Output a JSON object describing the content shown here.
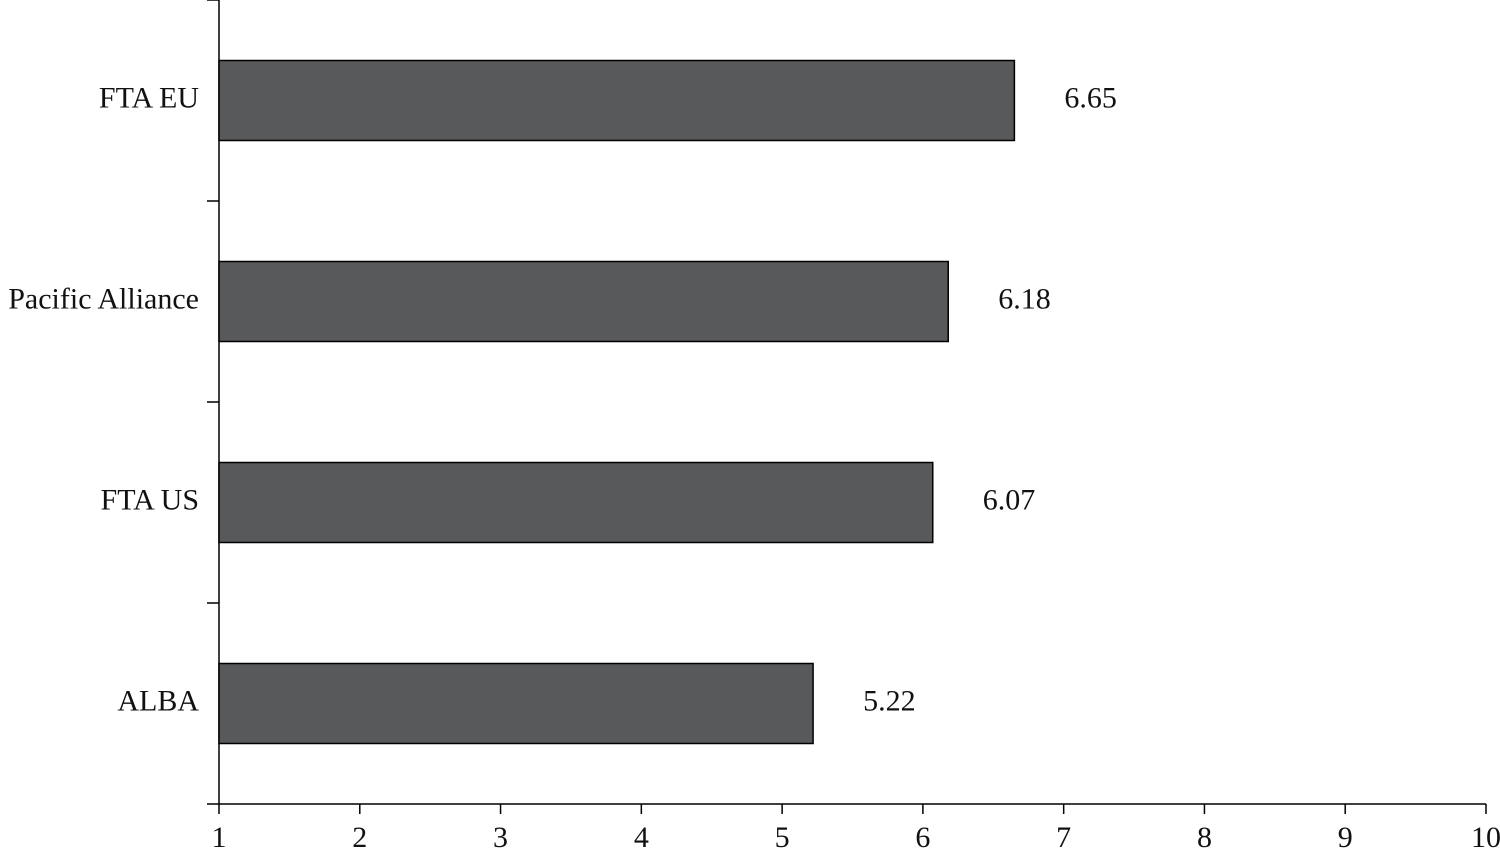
{
  "chart_data": {
    "type": "bar",
    "orientation": "horizontal",
    "categories": [
      "FTA EU",
      "Pacific Alliance",
      "FTA US",
      "ALBA"
    ],
    "values": [
      6.65,
      6.18,
      6.07,
      5.22
    ],
    "color": "#58595b",
    "xlim": [
      1,
      10
    ],
    "xticks": [
      1,
      2,
      3,
      4,
      5,
      6,
      7,
      8,
      9,
      10
    ],
    "grid": false
  }
}
